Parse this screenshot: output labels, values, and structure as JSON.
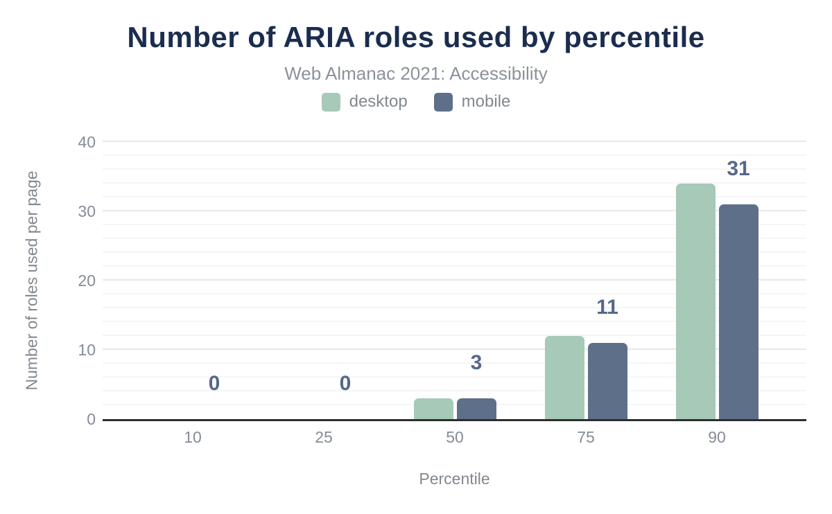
{
  "title": "Number of ARIA roles used by percentile",
  "subtitle": "Web Almanac 2021: Accessibility",
  "legend": [
    {
      "label": "desktop",
      "color": "#a6c9b8"
    },
    {
      "label": "mobile",
      "color": "#5e7089"
    }
  ],
  "chart_data": {
    "type": "bar",
    "categories": [
      "10",
      "25",
      "50",
      "75",
      "90"
    ],
    "series": [
      {
        "name": "desktop",
        "color": "#a6c9b8",
        "values": [
          0,
          0,
          3,
          12,
          34
        ]
      },
      {
        "name": "mobile",
        "color": "#5e7089",
        "values": [
          0,
          0,
          3,
          11,
          31
        ]
      }
    ],
    "data_labels": {
      "on_series": "mobile",
      "values": [
        "0",
        "0",
        "3",
        "11",
        "31"
      ],
      "color": "#55678b"
    },
    "xlabel": "Percentile",
    "ylabel": "Number of roles used per page",
    "ylim": [
      0,
      40
    ],
    "yticks": [
      0,
      10,
      20,
      30,
      40
    ],
    "grid": {
      "minor_step": 2,
      "major_step": 10,
      "minor_color": "#f5f5f6",
      "major_color": "#e7e7ea"
    },
    "axis_line_color": "#2d2d2d",
    "legend_position": "top-center",
    "background": "#ffffff",
    "title_color": "#1b2d4e",
    "text_color": "#868c96"
  }
}
